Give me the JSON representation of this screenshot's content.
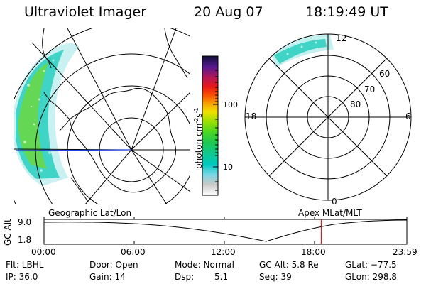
{
  "header": {
    "instrument": "Ultraviolet Imager",
    "date": "20 Aug 07",
    "time": "18:19:49 UT"
  },
  "colorbar": {
    "label": "photon cm",
    "label_exp1": "-2",
    "label_mid": "s",
    "label_exp2": "-1",
    "ticks": [
      "100",
      "10"
    ]
  },
  "polar": {
    "mlt_labels": {
      "top": "12",
      "left": "18",
      "right": "6",
      "bottom": "0"
    },
    "lat_labels": [
      "60",
      "70",
      "80"
    ]
  },
  "timeline": {
    "axis_label": "GC Alt",
    "y_max": "9.0",
    "y_min": "1.8",
    "left_caption": "Geographic Lat/Lon",
    "right_caption": "Apex MLat/MLT",
    "x_ticks": [
      "00:00",
      "06:00",
      "12:00",
      "18:00",
      "23:59"
    ],
    "current_time_fraction": 0.764
  },
  "status": {
    "filter": "Flt: LBHL",
    "ip": "IP: 36.0",
    "door": "Door: Open",
    "gain": "Gain: 14",
    "mode": "Mode: Normal",
    "dsp": "Dsp:",
    "dsp_value": "5.1",
    "gc_alt": "GC Alt: 5.8 Re",
    "seq": "Seq: 39",
    "glat": "GLat: −77.5",
    "glon": "GLon: 298.8"
  },
  "colors": {
    "marker": "#d81e1e",
    "meridian": "#1e3cd8"
  }
}
